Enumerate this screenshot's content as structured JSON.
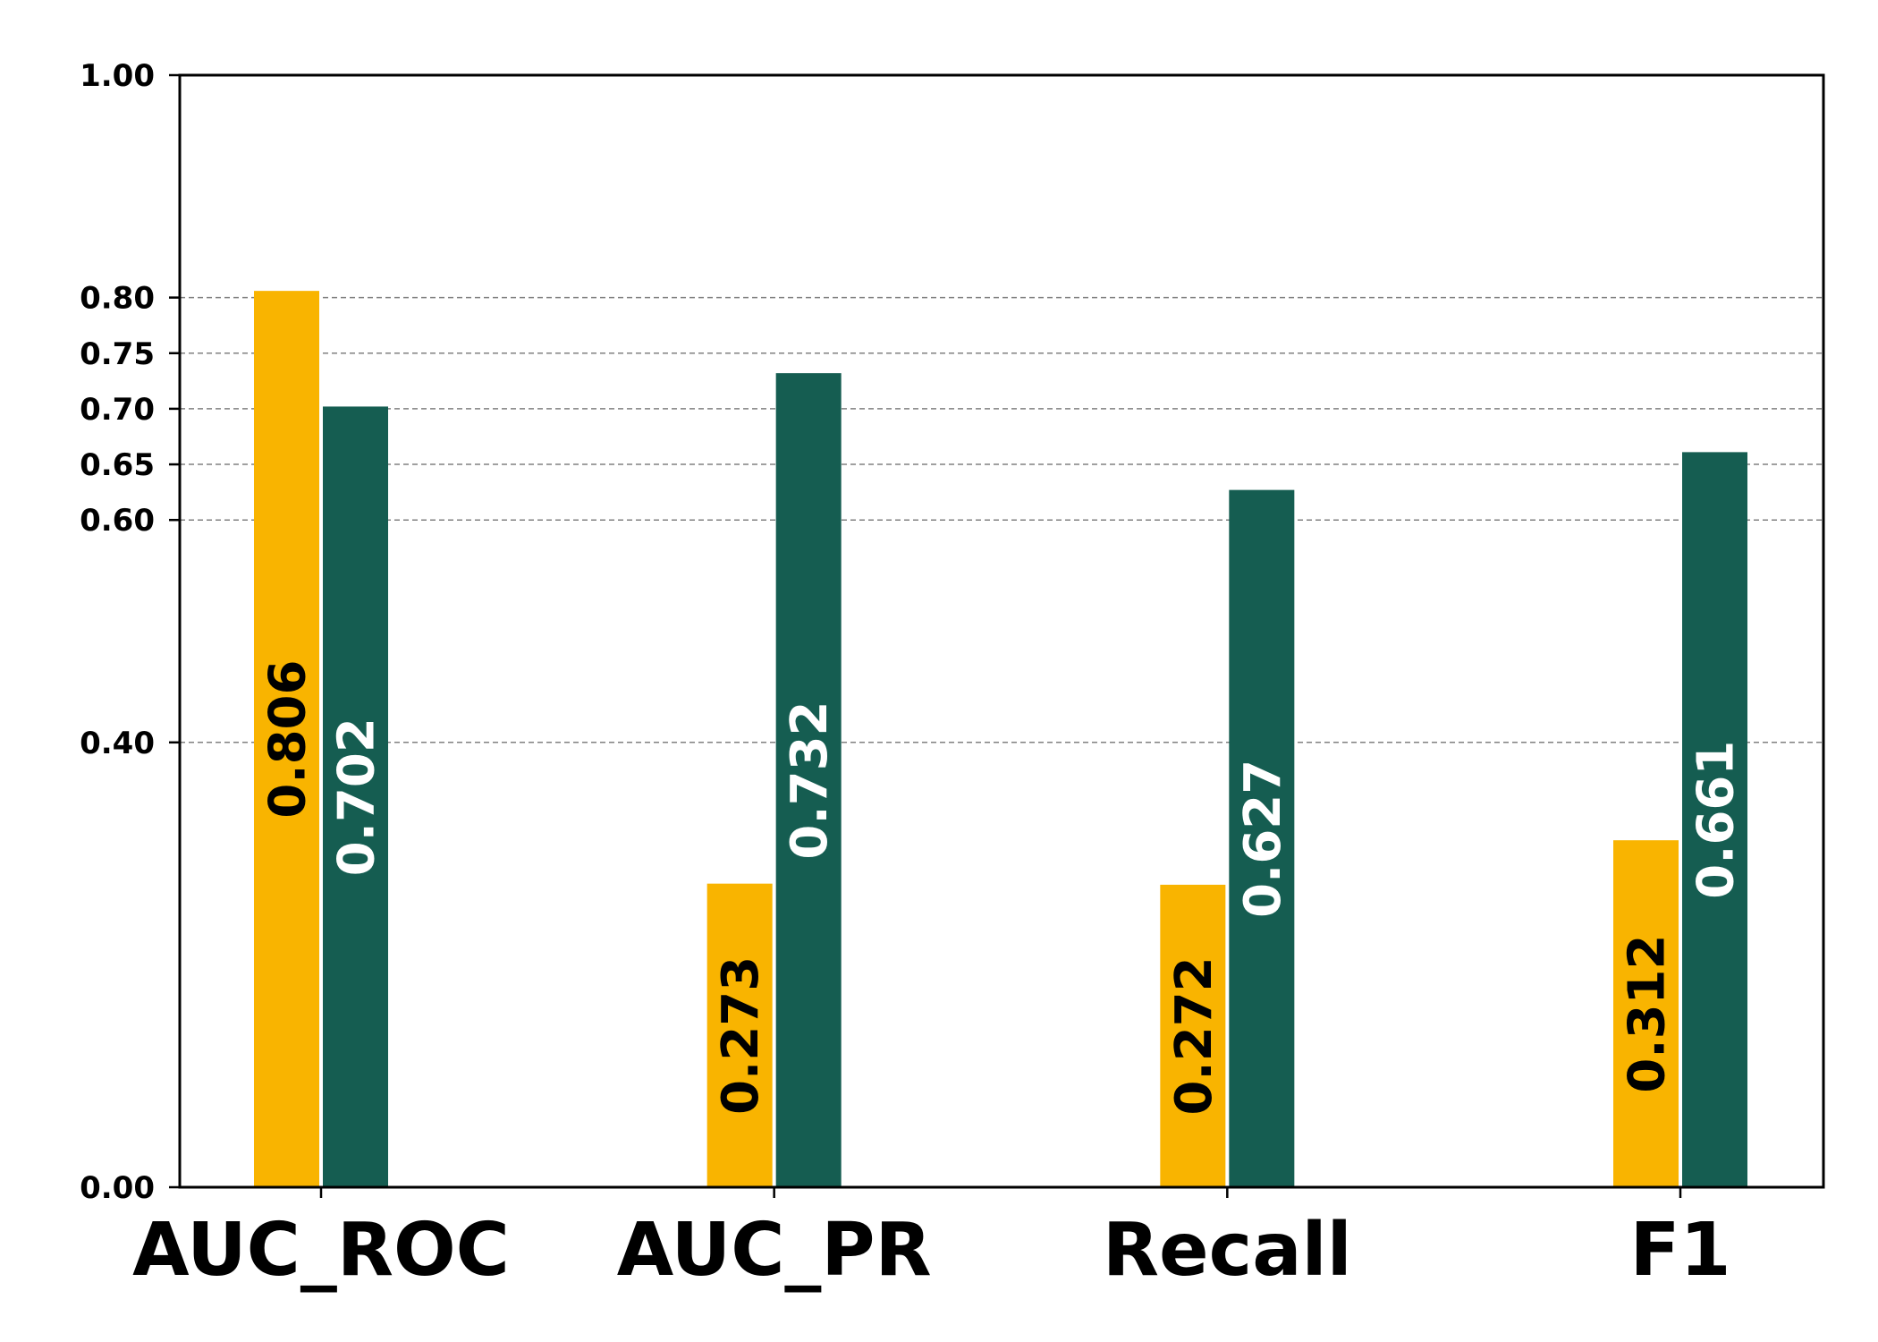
{
  "chart_data": {
    "type": "bar",
    "title": "",
    "xlabel": "",
    "ylabel": "",
    "categories": [
      "AUC_ROC",
      "AUC_PR",
      "Recall",
      "F1"
    ],
    "series": [
      {
        "values": [
          0.806,
          0.273,
          0.272,
          0.312
        ],
        "color": "#F9B400",
        "label_color": "#000000"
      },
      {
        "values": [
          0.702,
          0.732,
          0.627,
          0.661
        ],
        "color": "#155D51",
        "label_color": "#FFFFFF"
      }
    ],
    "data_labels": [
      [
        "0.806",
        "0.273",
        "0.272",
        "0.312"
      ],
      [
        "0.702",
        "0.732",
        "0.627",
        "0.661"
      ]
    ],
    "ylim": [
      0.0,
      1.0
    ],
    "yticks": [
      0.0,
      0.4,
      0.6,
      0.65,
      0.7,
      0.75,
      0.8,
      1.0
    ],
    "ytick_labels": [
      "0.00",
      "0.40",
      "0.60",
      "0.65",
      "0.70",
      "0.75",
      "0.80",
      "1.00"
    ],
    "gridlines": [
      0.4,
      0.6,
      0.65,
      0.7,
      0.75,
      0.8
    ],
    "grid": "horizontal dashed",
    "legend": "none"
  }
}
